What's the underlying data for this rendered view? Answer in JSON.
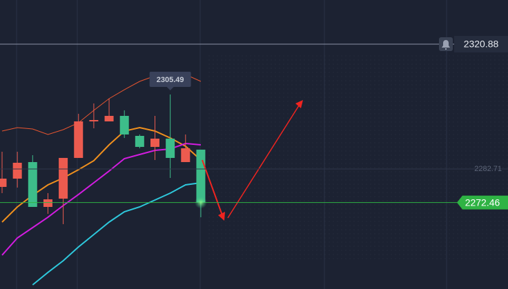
{
  "chart_data": {
    "type": "candlestick",
    "categories": [
      null,
      null,
      null,
      null,
      null,
      null,
      null,
      null,
      null,
      null,
      null,
      null,
      null,
      null
    ],
    "open": [
      2279.76,
      2284.61,
      2271.11,
      2273.43,
      2286.09,
      2297.26,
      2297.68,
      2298.95,
      2293.26,
      2289.46,
      2291.99,
      2286.09,
      2289.04,
      2272.46
    ],
    "close": [
      2277.23,
      2279.76,
      2284.82,
      2271.11,
      2273.64,
      2286.09,
      2297.26,
      2297.26,
      2298.95,
      2292.83,
      2289.46,
      2291.99,
      2284.82,
      2288.62
    ],
    "high": [
      2287.98,
      2287.98,
      2286.93,
      2275.33,
      2286.09,
      2299.58,
      2302.75,
      2304.22,
      2300.64,
      2293.26,
      2298.95,
      2305.49,
      2293.26,
      2288.62
    ],
    "low": [
      2275.33,
      2277.02,
      2271.11,
      2269.0,
      2265.84,
      2286.09,
      2295.15,
      2297.26,
      2292.2,
      2289.04,
      2285.45,
      2279.97,
      2284.82,
      2267.95
    ],
    "up_color": "#3dbd8a",
    "down_color": "#ec5b4f",
    "series": [
      {
        "color": "#e8552f",
        "values": [
          2294.31,
          2295.36,
          2294.94,
          2293.26,
          2294.73,
          2296.84,
          2300.64,
          2304.22,
          2306.96,
          2309.49,
          2311.18,
          2312.02,
          2311.6,
          2309.49
        ]
      },
      {
        "color": "#f0901e",
        "values": [
          2266.47,
          2271.11,
          2274.69,
          2277.86,
          2279.97,
          2282.5,
          2285.24,
          2290.09,
          2294.31,
          2295.36,
          2294.31,
          2292.2,
          2289.67,
          2285.45
        ]
      },
      {
        "color": "#d21ce0",
        "values": [
          2256.35,
          2261.62,
          2264.78,
          2267.95,
          2271.53,
          2274.91,
          2278.49,
          2282.08,
          2285.87,
          2287.14,
          2288.4,
          2288.83,
          2290.51,
          2290.09
        ]
      },
      {
        "color": "#2ec8dc",
        "values": [
          null,
          null,
          2247.28,
          2251.08,
          2254.66,
          2258.88,
          2262.67,
          2266.47,
          2269.63,
          2271.11,
          2273.22,
          2275.33,
          2277.86,
          2278.49
        ]
      }
    ],
    "ylim": [
      2246.01,
      2334.38
    ],
    "price_lines": [
      2320.88,
      2282.71
    ],
    "current_price": 2272.46,
    "high_label": 2305.49
  }
}
